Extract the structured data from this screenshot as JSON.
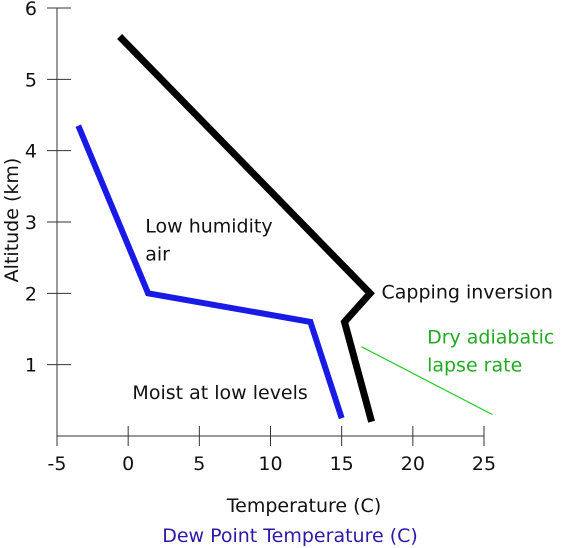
{
  "chart_data": {
    "type": "line",
    "title": "",
    "xlabel": "Temperature (C)",
    "xlabel2": "Dew Point Temperature (C)",
    "ylabel": "Altitude (km)",
    "xlim": [
      -5,
      25
    ],
    "ylim": [
      0,
      6
    ],
    "grid": false,
    "x_ticks": [
      -5,
      0,
      5,
      10,
      15,
      20,
      25
    ],
    "x_tick_labels": [
      "-5",
      "0",
      "5",
      "10",
      "15",
      "20",
      "25"
    ],
    "y_ticks": [
      1,
      2,
      3,
      4,
      5,
      6
    ],
    "y_tick_labels": [
      "1",
      "2",
      "3",
      "4",
      "5",
      "6"
    ],
    "series": [
      {
        "color": "#000000",
        "points": [
          {
            "x": -0.6,
            "y": 5.6
          },
          {
            "x": 17.0,
            "y": 2.0
          },
          {
            "x": 15.2,
            "y": 1.6
          },
          {
            "x": 17.1,
            "y": 0.2
          }
        ]
      },
      {
        "color": "#1a1ae6",
        "points": [
          {
            "x": -3.5,
            "y": 4.35
          },
          {
            "x": 1.4,
            "y": 2.0
          },
          {
            "x": 12.8,
            "y": 1.6
          },
          {
            "x": 15.0,
            "y": 0.25
          }
        ]
      },
      {
        "color": "#22cc22",
        "points": [
          {
            "x": 16.4,
            "y": 1.25
          },
          {
            "x": 25.6,
            "y": 0.3
          }
        ]
      }
    ],
    "annotations": [
      {
        "lines": [
          "Low humidity",
          "air"
        ],
        "x": 1.2,
        "y": 2.85,
        "color": "#111111"
      },
      {
        "lines": [
          "Capping inversion"
        ],
        "x": 17.8,
        "y": 1.93,
        "color": "#111111"
      },
      {
        "lines": [
          "Dry adiabatic",
          "lapse rate"
        ],
        "x": 21.0,
        "y": 1.3,
        "color": "#22aa22"
      },
      {
        "lines": [
          "Moist at low levels"
        ],
        "x": 0.3,
        "y": 0.52,
        "color": "#111111"
      }
    ]
  }
}
